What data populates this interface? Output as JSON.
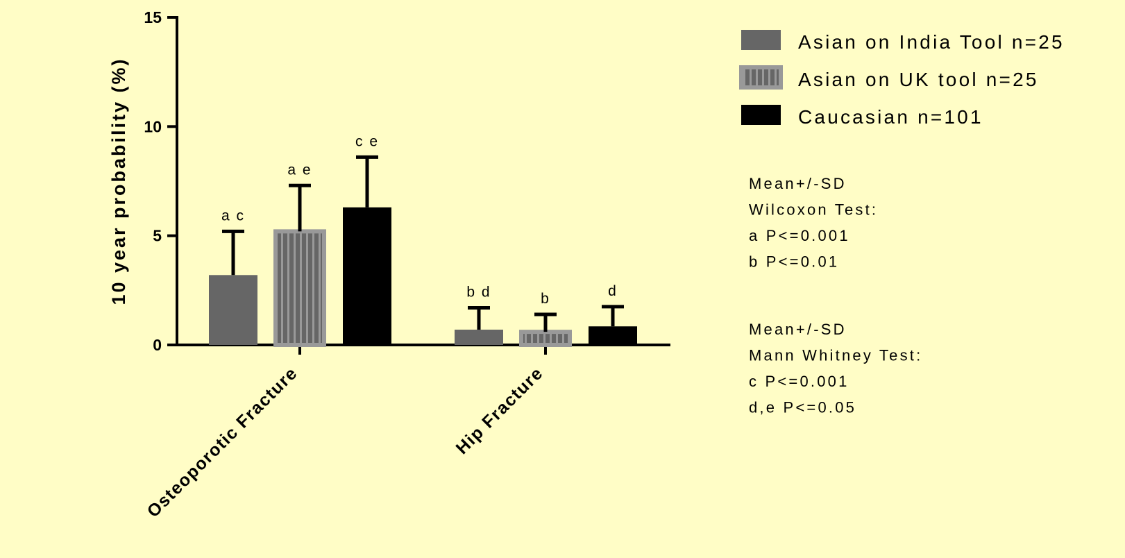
{
  "chart_data": {
    "type": "bar",
    "ylabel": "10 year probability (%)",
    "xlabel": "",
    "ylim": [
      0,
      15
    ],
    "yticks": [
      0,
      5,
      10,
      15
    ],
    "categories": [
      "Osteoporotic Fracture",
      "Hip Fracture"
    ],
    "series": [
      {
        "name": "Asian on India Tool n=25",
        "color": "#666666",
        "pattern": "solid",
        "values": [
          3.2,
          0.7
        ],
        "sd": [
          2.0,
          1.0
        ],
        "labels": [
          "a c",
          "b d"
        ]
      },
      {
        "name": "Asian on UK tool n=25",
        "color": "#999999",
        "pattern": "vertical-stripes",
        "values": [
          5.2,
          0.6
        ],
        "sd": [
          2.1,
          0.8
        ],
        "labels": [
          "a e",
          "b"
        ]
      },
      {
        "name": "Caucasian n=101",
        "color": "#000000",
        "pattern": "solid",
        "values": [
          6.3,
          0.85
        ],
        "sd": [
          2.3,
          0.9
        ],
        "labels": [
          "c e",
          "d"
        ]
      }
    ],
    "legend_position": "top-right",
    "grid": false
  },
  "notes": {
    "wilcoxon": [
      "Mean+/-SD",
      "Wilcoxon Test:",
      "a P<=0.001",
      "b P<=0.01"
    ],
    "mann_whitney": [
      "Mean+/-SD",
      "Mann  Whitney Test:",
      "c P<=0.001",
      "d,e P<=0.05"
    ]
  }
}
